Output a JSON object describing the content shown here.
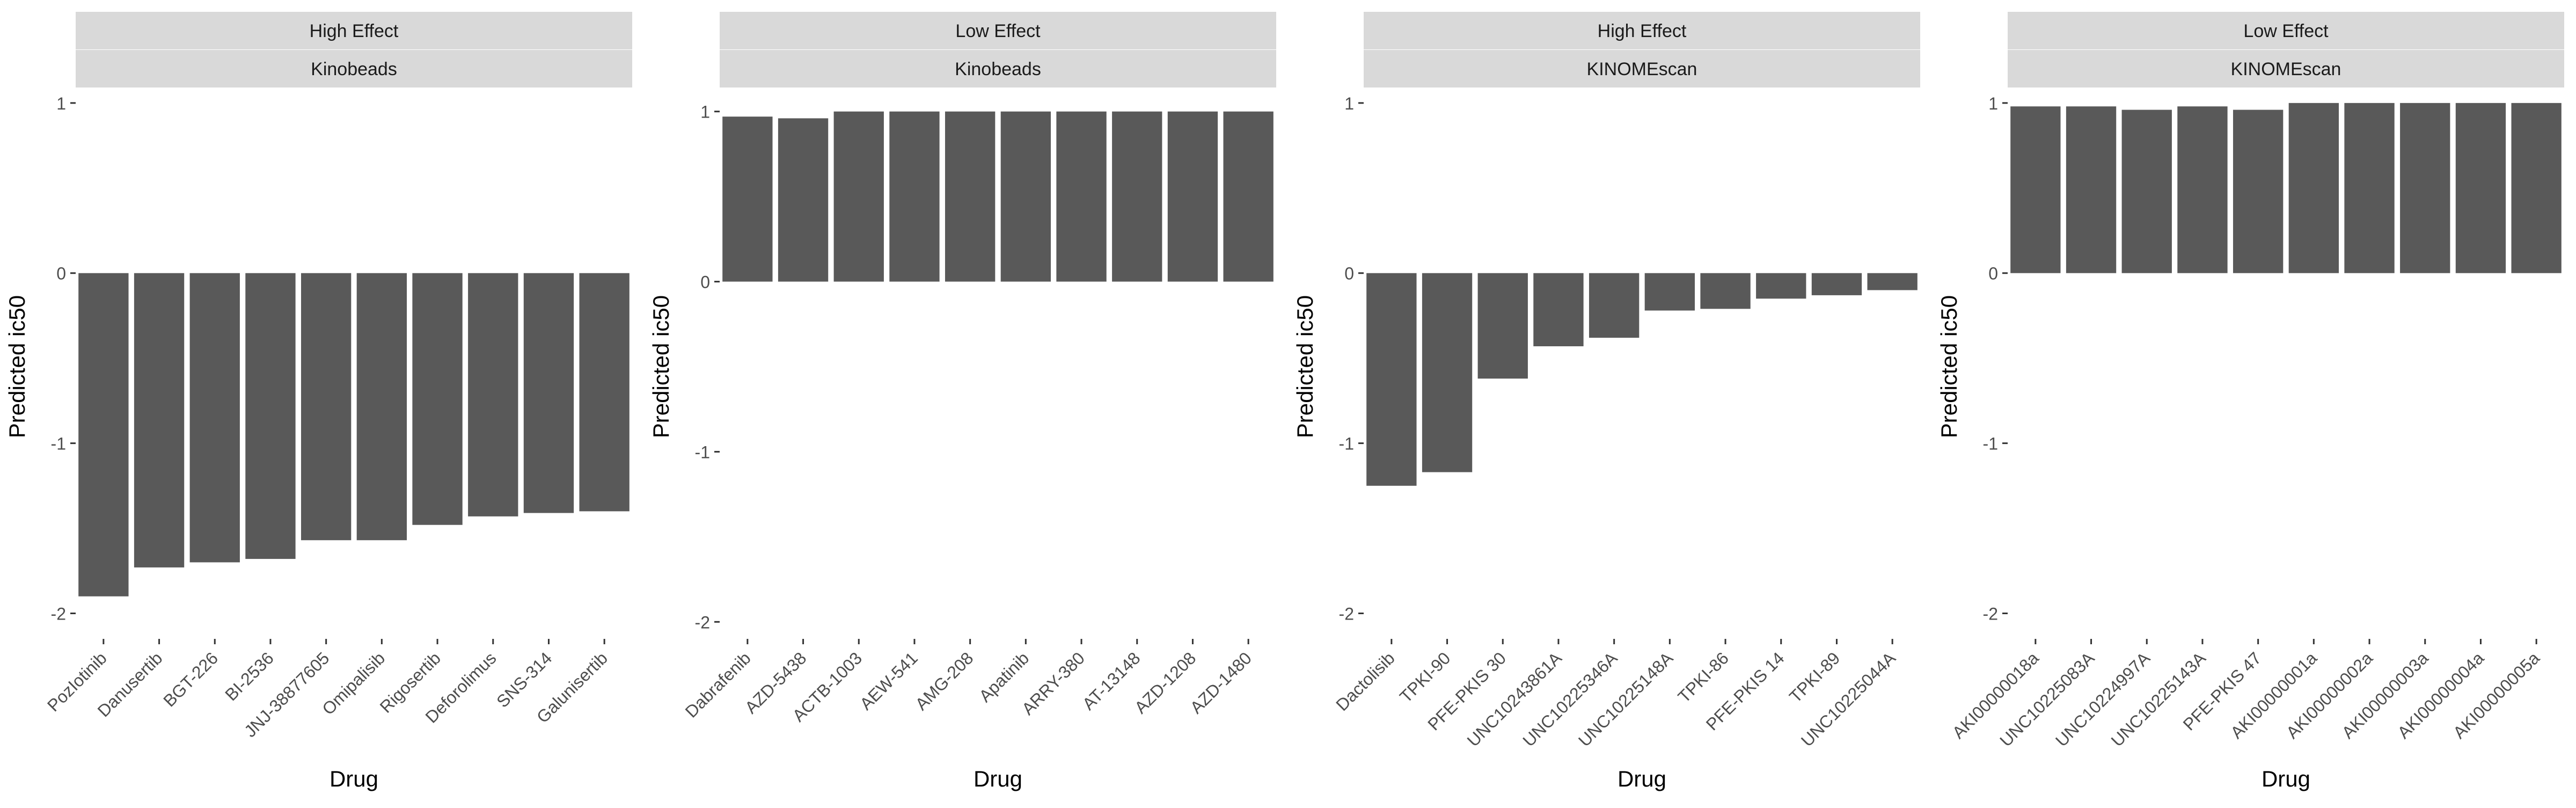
{
  "chart_data": [
    {
      "type": "bar",
      "strip_top": "High Effect",
      "strip_bottom": "Kinobeads",
      "xlabel": "Drug",
      "ylabel": "Predicted ic50",
      "ylim": [
        -2.15,
        1.05
      ],
      "yticks": [
        -2,
        -1,
        0,
        1
      ],
      "ytick_labels": [
        "-2",
        "-1",
        "0",
        "1"
      ],
      "categories": [
        "PozIotinib",
        "Danusertib",
        "BGT-226",
        "BI-2536",
        "JNJ-38877605",
        "Omipalisib",
        "Rigosertib",
        "Deforolimus",
        "SNS-314",
        "Galunisertib"
      ],
      "values": [
        -1.9,
        -1.73,
        -1.7,
        -1.68,
        -1.57,
        -1.57,
        -1.48,
        -1.43,
        -1.41,
        -1.4
      ],
      "bar_color": "#595959"
    },
    {
      "type": "bar",
      "strip_top": "Low Effect",
      "strip_bottom": "Kinobeads",
      "xlabel": "Drug",
      "ylabel": "Predicted ic50",
      "ylim": [
        -2.1,
        1.1
      ],
      "yticks": [
        -2,
        -1,
        0,
        1
      ],
      "ytick_labels": [
        "-2",
        "-1",
        "0",
        "1"
      ],
      "categories": [
        "Dabrafenib",
        "AZD-5438",
        "ACTB-1003",
        "AEW-541",
        "AMG-208",
        "Apatinib",
        "ARRY-380",
        "AT-13148",
        "AZD-1208",
        "AZD-1480"
      ],
      "values": [
        0.97,
        0.96,
        1.0,
        1.0,
        1.0,
        1.0,
        1.0,
        1.0,
        1.0,
        1.0
      ],
      "bar_color": "#595959"
    },
    {
      "type": "bar",
      "strip_top": "High Effect",
      "strip_bottom": "KINOMEscan",
      "xlabel": "Drug",
      "ylabel": "Predicted ic50",
      "ylim": [
        -2.15,
        1.05
      ],
      "yticks": [
        -2,
        -1,
        0,
        1
      ],
      "ytick_labels": [
        "-2",
        "-1",
        "0",
        "1"
      ],
      "categories": [
        "Dactolisib",
        "TPKI-90",
        "PFE-PKIS 30",
        "UNC10243861A",
        "UNC10225346A",
        "UNC10225148A",
        "TPKI-86",
        "PFE-PKIS 14",
        "TPKI-89",
        "UNC10225044A"
      ],
      "values": [
        -1.25,
        -1.17,
        -0.62,
        -0.43,
        -0.38,
        -0.22,
        -0.21,
        -0.15,
        -0.13,
        -0.1
      ],
      "bar_color": "#595959"
    },
    {
      "type": "bar",
      "strip_top": "Low Effect",
      "strip_bottom": "KINOMEscan",
      "xlabel": "Drug",
      "ylabel": "Predicted ic50",
      "ylim": [
        -2.15,
        1.05
      ],
      "yticks": [
        -2,
        -1,
        0,
        1
      ],
      "ytick_labels": [
        "-2",
        "-1",
        "0",
        "1"
      ],
      "categories": [
        "AKI00000018a",
        "UNC10225083A",
        "UNC10224997A",
        "UNC10225143A",
        "PFE-PKIS 47",
        "AKI00000001a",
        "AKI00000002a",
        "AKI00000003a",
        "AKI00000004a",
        "AKI00000005a"
      ],
      "values": [
        0.98,
        0.98,
        0.96,
        0.98,
        0.96,
        1.0,
        1.0,
        1.0,
        1.0,
        1.0
      ],
      "bar_color": "#595959"
    }
  ]
}
